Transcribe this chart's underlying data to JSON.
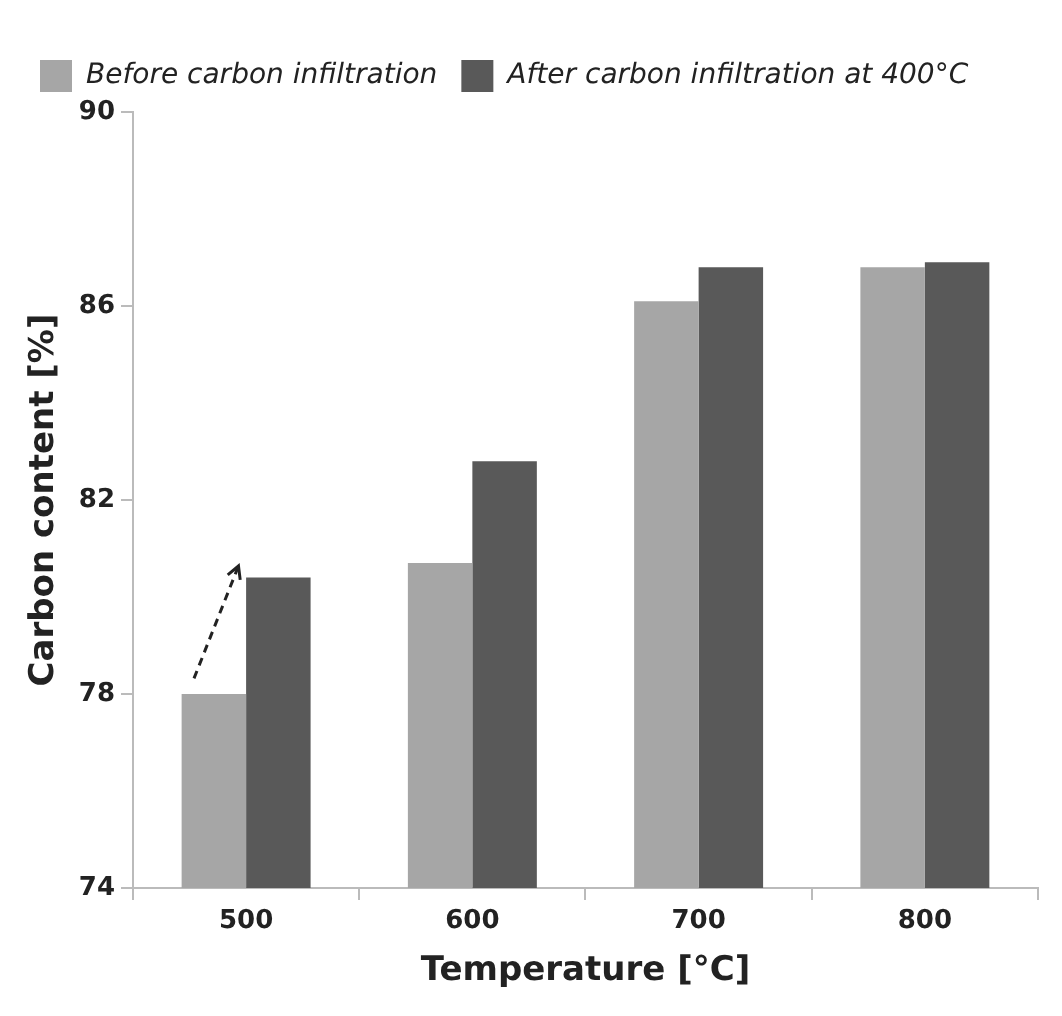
{
  "chart_data": {
    "type": "bar",
    "xlabel": "Temperature [°C]",
    "ylabel": "Carbon content [%]",
    "categories": [
      "500",
      "600",
      "700",
      "800"
    ],
    "series": [
      {
        "name": "Before carbon infiltration",
        "color": "#a6a6a6",
        "values": [
          78.0,
          80.7,
          86.1,
          86.8
        ]
      },
      {
        "name": "After carbon infiltration at 400°C",
        "color": "#595959",
        "values": [
          80.4,
          82.8,
          86.8,
          86.9
        ]
      }
    ],
    "ylim": [
      74,
      90
    ],
    "yticks": [
      74,
      78,
      82,
      86,
      90
    ],
    "grid": false,
    "legend": "top left"
  }
}
